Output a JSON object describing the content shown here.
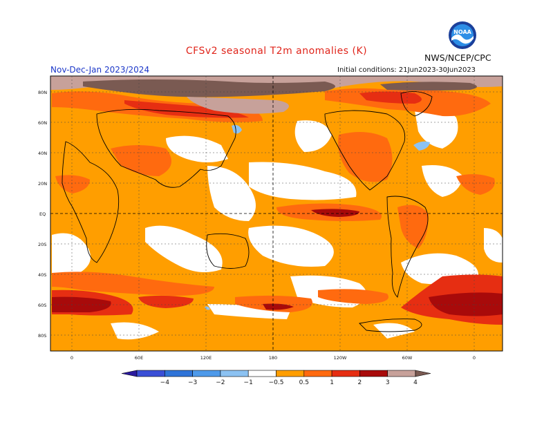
{
  "header": {
    "title": "CFSv2 seasonal T2m anomalies (K)",
    "agency": "NWS/NCEP/CPC",
    "season": "Nov-Dec-Jan 2023/2024",
    "initial_conditions": "Initial conditions: 21Jun2023-30Jun2023",
    "logo_text": "NOAA"
  },
  "map": {
    "lat_labels": [
      "80N",
      "60N",
      "40N",
      "20N",
      "EQ",
      "20S",
      "40S",
      "60S",
      "80S"
    ],
    "lon_labels": [
      "0",
      "60E",
      "120E",
      "180",
      "120W",
      "60W",
      "0"
    ]
  },
  "colorbar": {
    "labels": [
      "−4",
      "−3",
      "−2",
      "−1",
      "−0.5",
      "0.5",
      "1",
      "2",
      "3",
      "4"
    ],
    "colors": [
      "#2b1a9e",
      "#3a4fd6",
      "#2f74d8",
      "#4e9aea",
      "#8cc2f2",
      "#ffffff",
      "#ff9e00",
      "#ff6a0f",
      "#e62e12",
      "#a80a0a",
      "#c7a19a",
      "#7a5a52"
    ]
  }
}
